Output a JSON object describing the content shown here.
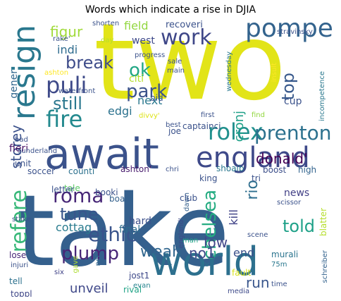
{
  "title": "Words which indicate a rise in DJIA",
  "words": [
    {
      "text": "take",
      "color": "#35608d",
      "orient": "h"
    },
    {
      "text": "two",
      "color": "#e2e418",
      "orient": "h"
    },
    {
      "text": "await",
      "color": "#3b528b",
      "orient": "h"
    },
    {
      "text": "world",
      "color": "#2d708e",
      "orient": "h"
    },
    {
      "text": "england",
      "color": "#3e4989",
      "orient": "h"
    },
    {
      "text": "resign",
      "color": "#2a788e",
      "orient": "v"
    },
    {
      "text": "pompey",
      "color": "#33638d",
      "orient": "h"
    },
    {
      "text": "work",
      "color": "#3f4788",
      "orient": "h"
    },
    {
      "text": "rolex",
      "color": "#21908d",
      "orient": "h"
    },
    {
      "text": "fire",
      "color": "#23898e",
      "orient": "h"
    },
    {
      "text": "puli",
      "color": "#3e4a89",
      "orient": "h"
    },
    {
      "text": "prenton",
      "color": "#2c718e",
      "orient": "h"
    },
    {
      "text": "roma",
      "color": "#482878",
      "orient": "h"
    },
    {
      "text": "refere",
      "color": "#37b878",
      "orient": "v"
    },
    {
      "text": "chelsea",
      "color": "#25ac82",
      "orient": "v"
    },
    {
      "text": "plump",
      "color": "#482677",
      "orient": "h"
    },
    {
      "text": "ethic",
      "color": "#3a548c",
      "orient": "h"
    },
    {
      "text": "weah'",
      "color": "#31668e",
      "orient": "h"
    },
    {
      "text": "break",
      "color": "#3e4c8a",
      "orient": "h"
    },
    {
      "text": "park",
      "color": "#3b528b",
      "orient": "h"
    },
    {
      "text": "still",
      "color": "#2a778e",
      "orient": "h"
    },
    {
      "text": "tune",
      "color": "#39558c",
      "orient": "h"
    },
    {
      "text": "told",
      "color": "#1fa188",
      "orient": "h"
    },
    {
      "text": "figur",
      "color": "#a0da39",
      "orient": "h"
    },
    {
      "text": "ok",
      "color": "#22a785",
      "orient": "h"
    },
    {
      "text": "storey",
      "color": "#3b518b",
      "orient": "v"
    },
    {
      "text": "top",
      "color": "#38598c",
      "orient": "v"
    },
    {
      "text": "rio",
      "color": "#2e6e8e",
      "orient": "v"
    },
    {
      "text": "donald'",
      "color": "#440154",
      "orient": "h"
    },
    {
      "text": "low",
      "color": "#404688",
      "orient": "h"
    },
    {
      "text": "run",
      "color": "#39568c",
      "orient": "h"
    },
    {
      "text": "unveil",
      "color": "#3f4889",
      "orient": "h"
    },
    {
      "text": "no1",
      "color": "#3f4788",
      "orient": "h"
    },
    {
      "text": "cottag",
      "color": "#297b8e",
      "orient": "h"
    },
    {
      "text": "next",
      "color": "#2a788e",
      "orient": "h"
    },
    {
      "text": "edgi",
      "color": "#2c728e",
      "orient": "h"
    },
    {
      "text": "fieri",
      "color": "#471164",
      "orient": "h"
    },
    {
      "text": "cronj",
      "color": "#1fa088",
      "orient": "v"
    },
    {
      "text": "west",
      "color": "#3e4989",
      "orient": "h"
    },
    {
      "text": "indi",
      "color": "#2f6c8e",
      "orient": "h"
    },
    {
      "text": "field",
      "color": "#93d741",
      "orient": "h"
    },
    {
      "text": "end",
      "color": "#3b518b",
      "orient": "h"
    },
    {
      "text": "kill",
      "color": "#404387",
      "orient": "v"
    },
    {
      "text": "gener",
      "color": "#31678e",
      "orient": "v"
    },
    {
      "text": "recoveri",
      "color": "#3b528b",
      "orient": "h"
    },
    {
      "text": "hard",
      "color": "#3c508b",
      "orient": "h"
    },
    {
      "text": "final",
      "color": "#2e6e8e",
      "orient": "h"
    },
    {
      "text": "board",
      "color": "#34618d",
      "orient": "h"
    },
    {
      "text": "booki",
      "color": "#3b528b",
      "orient": "h"
    },
    {
      "text": "tale",
      "color": "#5ac864",
      "orient": "h"
    },
    {
      "text": "soccer",
      "color": "#3b528b",
      "orient": "h"
    },
    {
      "text": "counti",
      "color": "#2c718e",
      "orient": "h"
    },
    {
      "text": "ashton'",
      "color": "#481b6d",
      "orient": "h"
    },
    {
      "text": "shoaib",
      "color": "#2a788e",
      "orient": "h"
    },
    {
      "text": "boost",
      "color": "#3c4f8a",
      "orient": "h"
    },
    {
      "text": "high",
      "color": "#32648e",
      "orient": "h"
    },
    {
      "text": "news",
      "color": "#424086",
      "orient": "h"
    },
    {
      "text": "scissor",
      "color": "#3b528b",
      "orient": "h"
    },
    {
      "text": "murali",
      "color": "#2b748e",
      "orient": "h"
    },
    {
      "text": "schreiber",
      "color": "#33628d",
      "orient": "v"
    },
    {
      "text": "blatter",
      "color": "#b5de2b",
      "orient": "v"
    },
    {
      "text": "jost1",
      "color": "#3e4989",
      "orient": "h"
    },
    {
      "text": "evan",
      "color": "#26828e",
      "orient": "h"
    },
    {
      "text": "rival",
      "color": "#20a386",
      "orient": "h"
    },
    {
      "text": "fault",
      "color": "#d8e219",
      "orient": "h"
    },
    {
      "text": "media",
      "color": "#3e4a89",
      "orient": "h"
    },
    {
      "text": "time",
      "color": "#3b528b",
      "orient": "h"
    },
    {
      "text": "75m",
      "color": "#2a788e",
      "orient": "h"
    },
    {
      "text": "tell",
      "color": "#2c718e",
      "orient": "h"
    },
    {
      "text": "toppl",
      "color": "#3f4788",
      "orient": "h"
    },
    {
      "text": "lose",
      "color": "#482878",
      "orient": "h"
    },
    {
      "text": "injuri",
      "color": "#3b528b",
      "orient": "h"
    },
    {
      "text": "six",
      "color": "#404387",
      "orient": "h"
    },
    {
      "text": "gave",
      "color": "#addc30",
      "orient": "v"
    },
    {
      "text": "net",
      "color": "#31688e",
      "orient": "v"
    },
    {
      "text": "man",
      "color": "#20a486",
      "orient": "h"
    },
    {
      "text": "tv",
      "color": "#2a788e",
      "orient": "h"
    },
    {
      "text": "scene",
      "color": "#3b528b",
      "orient": "h"
    },
    {
      "text": "england'",
      "color": "#3e4989",
      "orient": "v"
    },
    {
      "text": "dawn",
      "color": "#35608d",
      "orient": "v"
    },
    {
      "text": "chri",
      "color": "#3b528b",
      "orient": "h"
    },
    {
      "text": "club",
      "color": "#3b528b",
      "orient": "h"
    },
    {
      "text": "king",
      "color": "#3b528b",
      "orient": "h"
    },
    {
      "text": "tri",
      "color": "#3b528b",
      "orient": "h"
    },
    {
      "text": "letter",
      "color": "#3b528b",
      "orient": "h"
    },
    {
      "text": "unit",
      "color": "#3b528b",
      "orient": "h"
    },
    {
      "text": "stake",
      "color": "#3b528b",
      "orient": "h"
    },
    {
      "text": "bad",
      "color": "#3b528b",
      "orient": "h"
    },
    {
      "text": "sunderland",
      "color": "#3b528b",
      "orient": "h"
    },
    {
      "text": "joe",
      "color": "#3b528b",
      "orient": "h"
    },
    {
      "text": "captainci",
      "color": "#3b528b",
      "orient": "h"
    },
    {
      "text": "best",
      "color": "#3b528b",
      "orient": "h"
    },
    {
      "text": "first",
      "color": "#3b528b",
      "orient": "h"
    },
    {
      "text": "divvy'",
      "color": "#dde318",
      "orient": "h"
    },
    {
      "text": "find",
      "color": "#93d741",
      "orient": "h"
    },
    {
      "text": "cup",
      "color": "#3b528b",
      "orient": "h"
    },
    {
      "text": "bid",
      "color": "#3b528b",
      "orient": "h"
    },
    {
      "text": "citi",
      "color": "#b5de2b",
      "orient": "h"
    },
    {
      "text": "waterfront",
      "color": "#3b528b",
      "orient": "h"
    },
    {
      "text": "ashton",
      "color": "#fde725",
      "orient": "h"
    },
    {
      "text": "sale",
      "color": "#3b528b",
      "orient": "h"
    },
    {
      "text": "progress",
      "color": "#3b528b",
      "orient": "h"
    },
    {
      "text": "main",
      "color": "#3b528b",
      "orient": "h"
    },
    {
      "text": "rake'",
      "color": "#3b528b",
      "orient": "h"
    },
    {
      "text": "day",
      "color": "#b5de2b",
      "orient": "h"
    },
    {
      "text": "shorten",
      "color": "#3b528b",
      "orient": "h"
    },
    {
      "text": "stravinsky",
      "color": "#3b528b",
      "orient": "h"
    },
    {
      "text": "wednesday",
      "color": "#2a788e",
      "orient": "v"
    },
    {
      "text": "incompetence",
      "color": "#2a788e",
      "orient": "v"
    },
    {
      "text": "insult",
      "color": "#fde725",
      "orient": "v"
    }
  ]
}
